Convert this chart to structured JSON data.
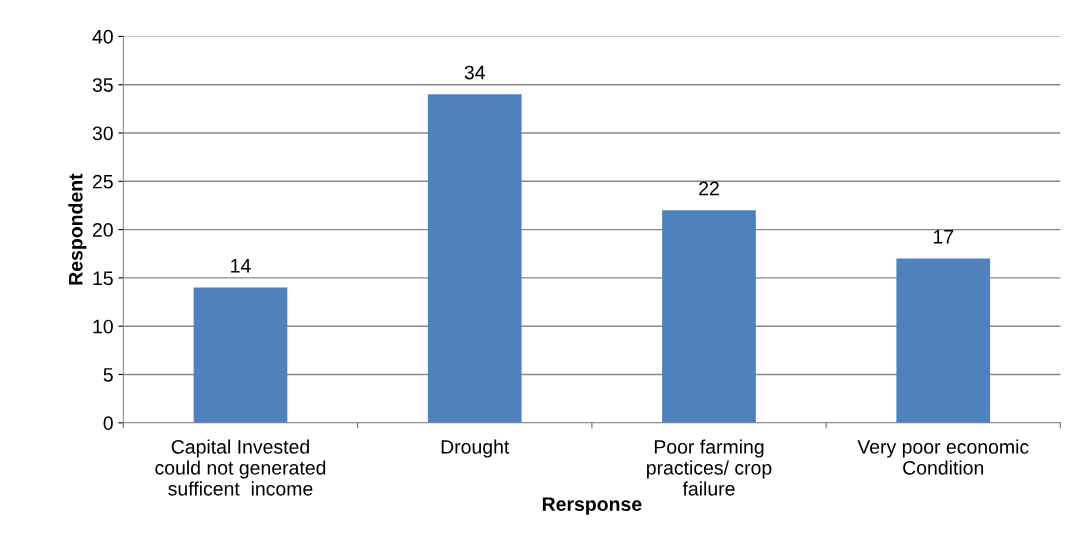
{
  "chart_data": {
    "type": "bar",
    "xlabel": "Rersponse",
    "ylabel": "Respondent",
    "categories": [
      "Capital Invested\ncould not generated\nsufficent  income",
      "Drought",
      "Poor farming\npractices/ crop\nfailure",
      "Very poor economic\nCondition"
    ],
    "values": [
      14,
      34,
      22,
      17
    ],
    "color": "#4f81bd",
    "ylim": [
      0,
      40
    ],
    "yticks": [
      0,
      5,
      10,
      15,
      20,
      25,
      30,
      35,
      40
    ],
    "grid": "y",
    "data_labels": true
  }
}
